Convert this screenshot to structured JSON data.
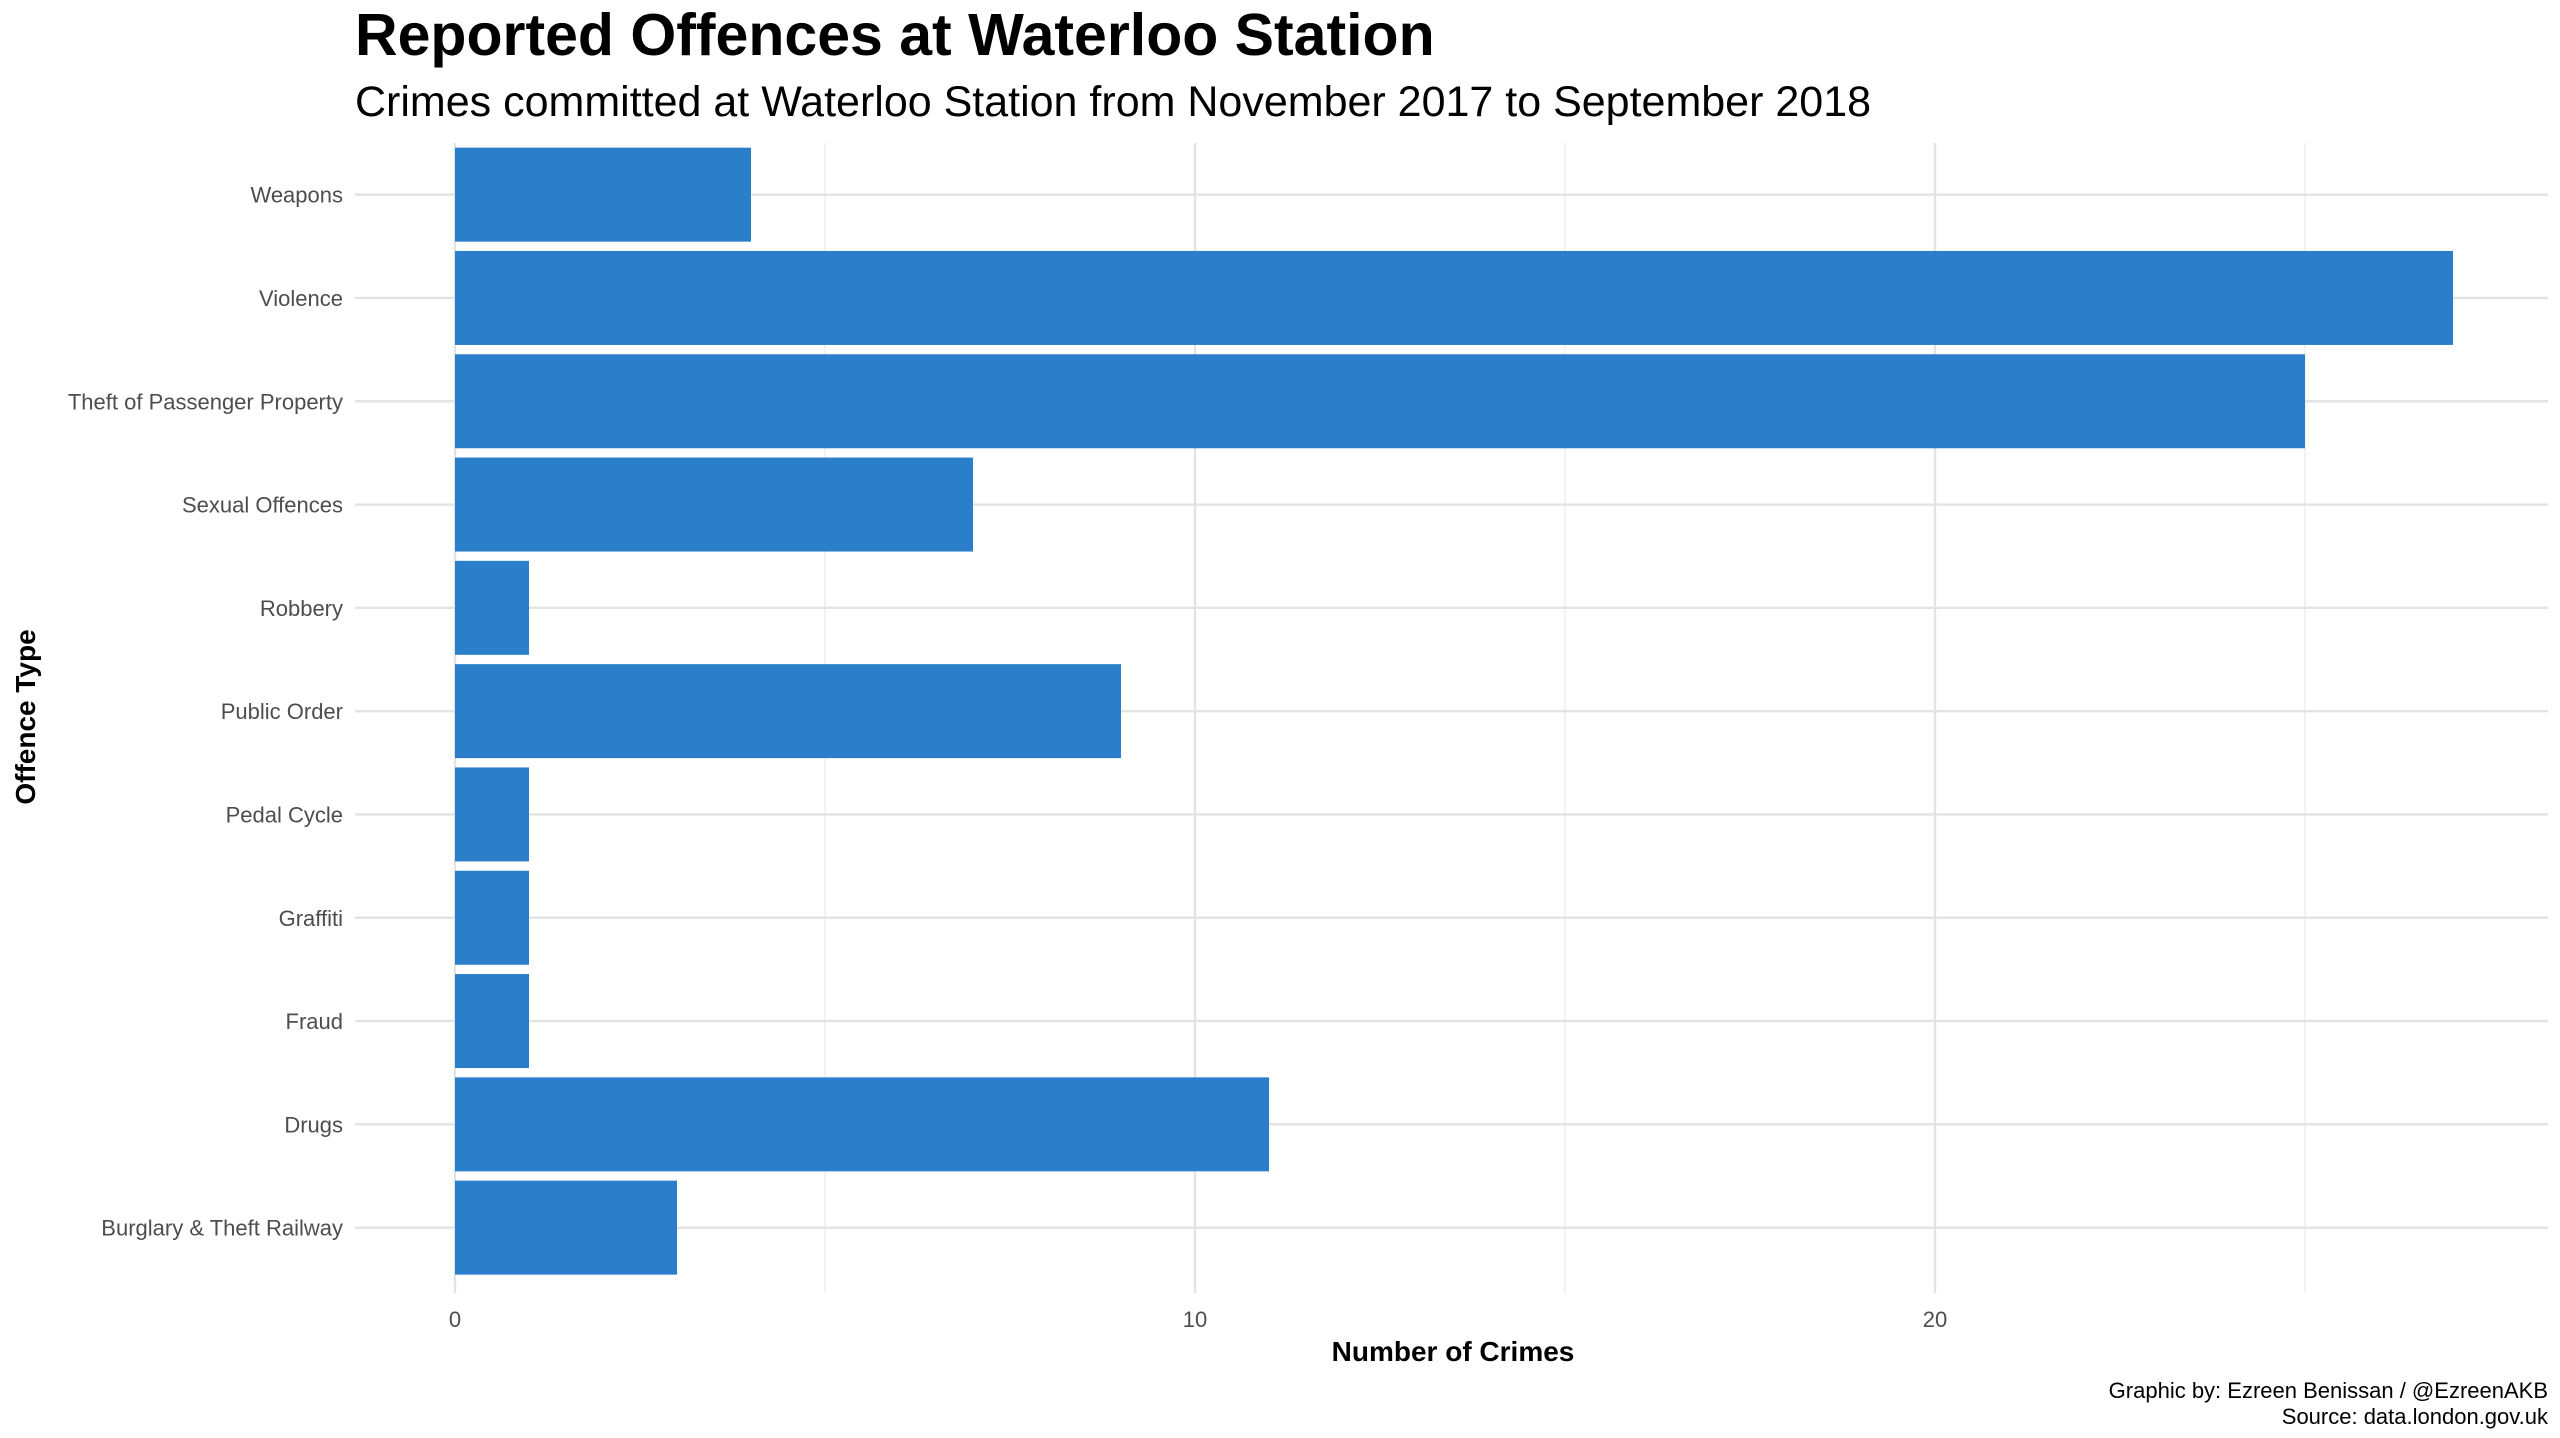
{
  "chart_data": {
    "type": "bar",
    "orientation": "horizontal",
    "title": "Reported Offences at Waterloo Station",
    "subtitle": "Crimes committed at Waterloo Station from November 2017 to September 2018",
    "xlabel": "Number of Crimes",
    "ylabel": "Offence Type",
    "categories": [
      "Burglary & Theft Railway",
      "Drugs",
      "Fraud",
      "Graffiti",
      "Pedal Cycle",
      "Public Order",
      "Robbery",
      "Sexual Offences",
      "Theft of Passenger Property",
      "Violence",
      "Weapons"
    ],
    "values": [
      3,
      11,
      1,
      1,
      1,
      9,
      1,
      7,
      25,
      27,
      4
    ],
    "xlim": [
      0,
      28.3
    ],
    "xticks": [
      0,
      10,
      20
    ],
    "grid": true,
    "bar_color": "#2b7fca",
    "caption": [
      "Graphic by: Ezreen Benissan / @EzreenAKB",
      "Source: data.london.gov.uk"
    ]
  }
}
